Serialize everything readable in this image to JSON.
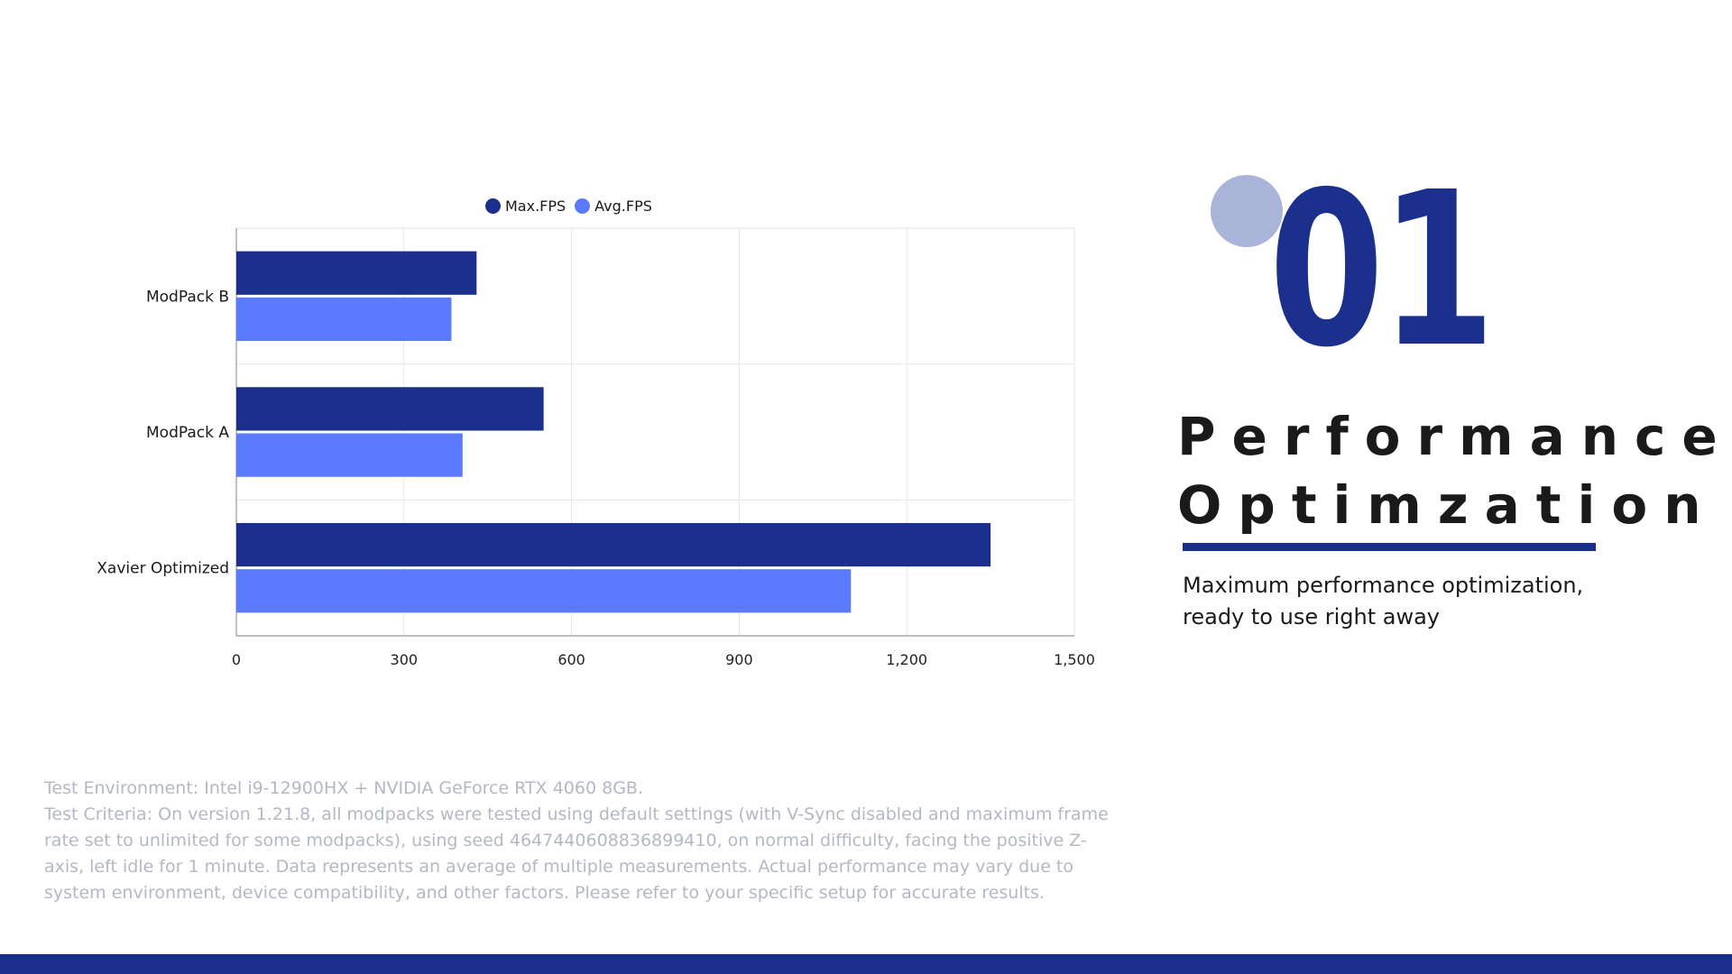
{
  "chart_data": {
    "type": "bar",
    "orientation": "horizontal",
    "categories": [
      "ModPack B",
      "ModPack A",
      "Xavier Optimized"
    ],
    "series": [
      {
        "name": "Max.FPS",
        "color": "#1a308c",
        "values": [
          430,
          550,
          1350
        ]
      },
      {
        "name": "Avg.FPS",
        "color": "#5b7bff",
        "values": [
          385,
          405,
          1100
        ]
      }
    ],
    "xlim": [
      0,
      1500
    ],
    "x_ticks": [
      "0",
      "300",
      "600",
      "900",
      "1,200",
      "1,500"
    ],
    "x_tick_values": [
      0,
      300,
      600,
      900,
      1200,
      1500
    ],
    "grid": true,
    "legend_position": "top-center"
  },
  "feature": {
    "number": "01",
    "title_line1": "Performance",
    "title_line2": "Optimzation",
    "subtitle_line1": "Maximum performance optimization,",
    "subtitle_line2": "ready to use right away"
  },
  "footnote": {
    "environment": "Test Environment: Intel i9-12900HX + NVIDIA GeForce RTX 4060 8GB.",
    "criteria": "Test Criteria: On version 1.21.8, all modpacks were tested using default settings (with V-Sync disabled and maximum frame rate set to unlimited for some modpacks), using seed 4647440608836899410, on normal difficulty, facing the positive Z-axis, left idle for 1 minute. Data represents an average of multiple measurements. Actual performance may vary due to system environment, device compatibility, and other factors. Please refer to your specific setup for accurate results."
  },
  "colors": {
    "primary": "#1a308c",
    "accent": "#5b7bff",
    "deco_circle": "#a9b4d8",
    "footnote_text": "#b4b8c4"
  }
}
